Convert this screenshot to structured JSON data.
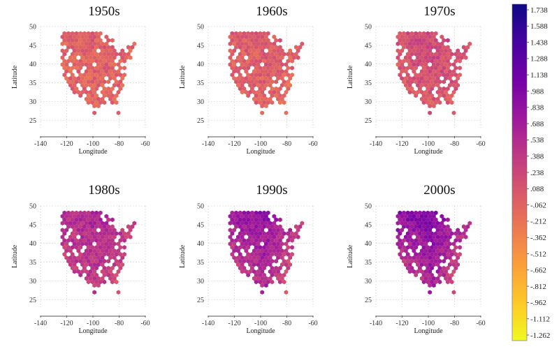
{
  "chart_data": [
    {
      "type": "heatmap",
      "title": "1950s",
      "xlabel": "Longitude",
      "ylabel": "Latitude",
      "xlim": [
        -140,
        -60
      ],
      "ylim": [
        23,
        50
      ],
      "x_ticks": [
        "-140",
        "-120",
        "-100",
        "-80",
        "-60"
      ],
      "y_ticks": [
        "25",
        "30",
        "35",
        "40",
        "45",
        "50"
      ],
      "grid": true,
      "regional_values": {
        "northwest": -0.05,
        "north_central": 0.0,
        "northeast": -0.05,
        "southwest": -0.1,
        "south_central": -0.05,
        "southeast": -0.1
      }
    },
    {
      "type": "heatmap",
      "title": "1960s",
      "xlabel": "Longitude",
      "ylabel": "Latitude",
      "xlim": [
        -140,
        -60
      ],
      "ylim": [
        23,
        50
      ],
      "x_ticks": [
        "-140",
        "-120",
        "-100",
        "-80",
        "-60"
      ],
      "y_ticks": [
        "25",
        "30",
        "35",
        "40",
        "45",
        "50"
      ],
      "grid": true,
      "regional_values": {
        "northwest": 0.0,
        "north_central": 0.05,
        "northeast": 0.0,
        "southwest": -0.1,
        "south_central": -0.05,
        "southeast": -0.15
      }
    },
    {
      "type": "heatmap",
      "title": "1970s",
      "xlabel": "Longitude",
      "ylabel": "Latitude",
      "xlim": [
        -140,
        -60
      ],
      "ylim": [
        23,
        50
      ],
      "x_ticks": [
        "-140",
        "-120",
        "-100",
        "-80",
        "-60"
      ],
      "y_ticks": [
        "25",
        "30",
        "35",
        "40",
        "45",
        "50"
      ],
      "grid": true,
      "regional_values": {
        "northwest": 0.15,
        "north_central": 0.25,
        "northeast": 0.2,
        "southwest": -0.05,
        "south_central": 0.05,
        "southeast": -0.05
      }
    },
    {
      "type": "heatmap",
      "title": "1980s",
      "xlabel": "Longitude",
      "ylabel": "Latitude",
      "xlim": [
        -140,
        -60
      ],
      "ylim": [
        23,
        50
      ],
      "x_ticks": [
        "-140",
        "-120",
        "-100",
        "-80",
        "-60"
      ],
      "y_ticks": [
        "25",
        "30",
        "35",
        "40",
        "45",
        "50"
      ],
      "grid": true,
      "regional_values": {
        "northwest": 0.5,
        "north_central": 0.6,
        "northeast": 0.45,
        "southwest": 0.2,
        "south_central": 0.35,
        "southeast": -0.05
      }
    },
    {
      "type": "heatmap",
      "title": "1990s",
      "xlabel": "Longitude",
      "ylabel": "Latitude",
      "xlim": [
        -140,
        -60
      ],
      "ylim": [
        23,
        50
      ],
      "x_ticks": [
        "-140",
        "-120",
        "-100",
        "-80",
        "-60"
      ],
      "y_ticks": [
        "25",
        "30",
        "35",
        "40",
        "45",
        "50"
      ],
      "grid": true,
      "regional_values": {
        "northwest": 0.75,
        "north_central": 0.85,
        "northeast": 0.55,
        "southwest": 0.05,
        "south_central": 0.5,
        "southeast": -0.35
      }
    },
    {
      "type": "heatmap",
      "title": "2000s",
      "xlabel": "Longitude",
      "ylabel": "Latitude",
      "xlim": [
        -140,
        -60
      ],
      "ylim": [
        23,
        50
      ],
      "x_ticks": [
        "-140",
        "-120",
        "-100",
        "-80",
        "-60"
      ],
      "y_ticks": [
        "25",
        "30",
        "35",
        "40",
        "45",
        "50"
      ],
      "grid": true,
      "regional_values": {
        "northwest": 0.95,
        "north_central": 0.95,
        "northeast": 0.7,
        "southwest": -0.1,
        "south_central": 0.6,
        "southeast": -0.45
      }
    }
  ],
  "colorbar": {
    "min": -1.262,
    "max": 1.738,
    "colormap": "plasma_r",
    "labels": [
      "1.738",
      "1.588",
      "1.438",
      "1.288",
      "1.138",
      ".988",
      ".838",
      ".688",
      ".538",
      ".388",
      ".238",
      ".088",
      "-.062",
      "-.212",
      "-.362",
      "-.512",
      "-.662",
      "-.812",
      "-.962",
      "-1.112",
      "-1.262"
    ],
    "colors": [
      "#0d0887",
      "#46039f",
      "#7201a8",
      "#9c179e",
      "#bd3786",
      "#d8576b",
      "#ed7953",
      "#fb9f3a",
      "#fdca26",
      "#f0f921"
    ]
  }
}
